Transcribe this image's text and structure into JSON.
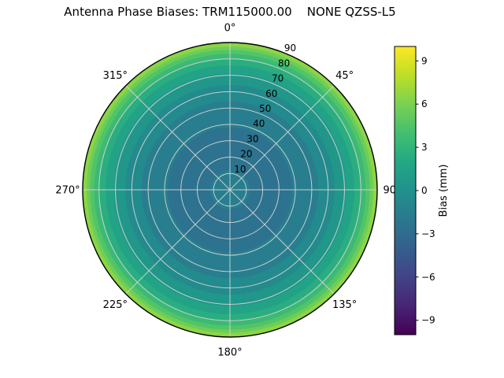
{
  "title": "Antenna Phase Biases: TRM115000.00    NONE QZSS-L5",
  "chart_data": {
    "type": "heatmap",
    "projection": "polar",
    "title": "Antenna Phase Biases: TRM115000.00    NONE QZSS-L5",
    "grid": true,
    "grid_color": "#d6d6d6",
    "outline_color": "#000000",
    "angular_ticks": [
      "0°",
      "45°",
      "90°",
      "135°",
      "180°",
      "225°",
      "270°",
      "315°"
    ],
    "angular_tick_degrees": [
      0,
      45,
      90,
      135,
      180,
      225,
      270,
      315
    ],
    "angular_direction": "clockwise",
    "angular_zero_location": "north",
    "radial_ticks": [
      10,
      20,
      30,
      40,
      50,
      60,
      70,
      80,
      90
    ],
    "radial_range": [
      0,
      90
    ],
    "radial_label_angle_deg": 22.5,
    "bias_profile_bands": [
      {
        "zenith_from": 0,
        "zenith_to": 12,
        "bias_mm": -1.5,
        "color": "#287e8e"
      },
      {
        "zenith_from": 12,
        "zenith_to": 38,
        "bias_mm": -2.5,
        "color": "#2d728e"
      },
      {
        "zenith_from": 38,
        "zenith_to": 54,
        "bias_mm": -1.5,
        "color": "#287e8e"
      },
      {
        "zenith_from": 54,
        "zenith_to": 64,
        "bias_mm": -0.5,
        "color": "#238a8d"
      },
      {
        "zenith_from": 64,
        "zenith_to": 71,
        "bias_mm": 0.5,
        "color": "#21978a"
      },
      {
        "zenith_from": 71,
        "zenith_to": 76,
        "bias_mm": 1.5,
        "color": "#22a286"
      },
      {
        "zenith_from": 76,
        "zenith_to": 80,
        "bias_mm": 2.5,
        "color": "#2bae7f"
      },
      {
        "zenith_from": 80,
        "zenith_to": 83,
        "bias_mm": 3.5,
        "color": "#3cb975"
      },
      {
        "zenith_from": 83,
        "zenith_to": 85.5,
        "bias_mm": 4.5,
        "color": "#52c468"
      },
      {
        "zenith_from": 85.5,
        "zenith_to": 87.5,
        "bias_mm": 5.5,
        "color": "#6dcd59"
      },
      {
        "zenith_from": 87.5,
        "zenith_to": 90,
        "bias_mm": 6.5,
        "color": "#8bd546"
      }
    ],
    "colorbar": {
      "label": "Bias (mm)",
      "colormap": "viridis",
      "range": [
        -10,
        10
      ],
      "ticks": [
        "9",
        "6",
        "3",
        "0",
        "−3",
        "−6",
        "−9"
      ],
      "tick_values": [
        9,
        6,
        3,
        0,
        -3,
        -6,
        -9
      ],
      "gradient_stops": [
        {
          "t": 0.0,
          "color": "#440154"
        },
        {
          "t": 0.1,
          "color": "#482475"
        },
        {
          "t": 0.2,
          "color": "#414487"
        },
        {
          "t": 0.3,
          "color": "#355f8d"
        },
        {
          "t": 0.4,
          "color": "#2a788e"
        },
        {
          "t": 0.5,
          "color": "#21918c"
        },
        {
          "t": 0.6,
          "color": "#22a884"
        },
        {
          "t": 0.7,
          "color": "#44bf70"
        },
        {
          "t": 0.8,
          "color": "#7ad151"
        },
        {
          "t": 0.9,
          "color": "#bddf26"
        },
        {
          "t": 1.0,
          "color": "#fde725"
        }
      ]
    }
  }
}
